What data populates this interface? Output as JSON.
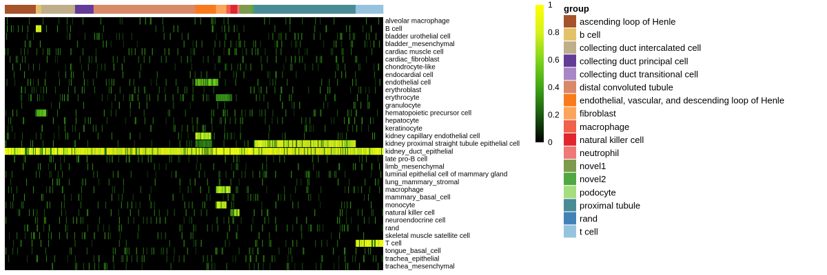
{
  "chart_data": {
    "type": "heatmap",
    "title": "",
    "n_columns": 550,
    "rows": [
      "alveolar macrophage",
      "B cell",
      "bladder urothelial cell",
      "bladder_mesenchymal",
      "cardiac muscle cell",
      "cardiac_fibroblast",
      "chondrocyte-like",
      "endocardial cell",
      "endothelial cell",
      "erythroblast",
      "erythrocyte",
      "granulocyte",
      "hematopoietic precursor cell",
      "hepatocyte",
      "keratinocyte",
      "kidney capillary endothelial cell",
      "kidney proximal straight tubule epithelial cell",
      "kidney_duct_epithelial",
      "late pro-B cell",
      "limb_mesenchymal",
      "luminal epithelial cell of mammary gland",
      "lung_mammary_stromal",
      "macrophage",
      "mammary_basal_cell",
      "monocyte",
      "natural killer cell",
      "neuroendocrine cell",
      "rand",
      "skeletal muscle satellite cell",
      "T cell",
      "tongue_basal_cell",
      "trachea_epithelial",
      "trachea_mesenchymal"
    ],
    "column_groups": [
      {
        "name": "ascending loop of Henle",
        "color": "#A6522A",
        "span": [
          0,
          45
        ]
      },
      {
        "name": "b cell",
        "color": "#E3C26A",
        "span": [
          45,
          53
        ]
      },
      {
        "name": "collecting duct intercalated cell",
        "color": "#BFAE8A",
        "span": [
          53,
          102
        ]
      },
      {
        "name": "collecting duct principal cell",
        "color": "#633C98",
        "span": [
          102,
          129
        ]
      },
      {
        "name": "distal convoluted tubule",
        "color": "#D9886A",
        "span": [
          129,
          277
        ]
      },
      {
        "name": "endothelial, vascular, and descending loop of Henle",
        "color": "#F97A1C",
        "span": [
          277,
          307
        ]
      },
      {
        "name": "fibroblast",
        "color": "#FCA55A",
        "span": [
          307,
          322
        ]
      },
      {
        "name": "macrophage",
        "color": "#F0604A",
        "span": [
          322,
          328
        ]
      },
      {
        "name": "natural killer cell",
        "color": "#E12630",
        "span": [
          328,
          338
        ]
      },
      {
        "name": "neutrophil",
        "color": "#F07878",
        "span": [
          338,
          341
        ]
      },
      {
        "name": "novel1",
        "color": "#7C9B4C",
        "span": [
          341,
          359
        ]
      },
      {
        "name": "novel2",
        "color": "#4FA842",
        "span": [
          359,
          362
        ]
      },
      {
        "name": "proximal tubule",
        "color": "#4A8C95",
        "span": [
          362,
          510
        ]
      },
      {
        "name": "t cell",
        "color": "#96C4DE",
        "span": [
          510,
          550
        ]
      }
    ],
    "high_value_blocks": [
      {
        "row": "kidney_duct_epithelial",
        "span": [
          0,
          550
        ],
        "value": 0.9
      },
      {
        "row": "kidney proximal straight tubule epithelial cell",
        "span": [
          362,
          510
        ],
        "value": 0.85
      },
      {
        "row": "kidney proximal straight tubule epithelial cell",
        "span": [
          277,
          300
        ],
        "value": 0.3
      },
      {
        "row": "kidney capillary endothelial cell",
        "span": [
          277,
          300
        ],
        "value": 0.75
      },
      {
        "row": "T cell",
        "span": [
          510,
          550
        ],
        "value": 0.9
      },
      {
        "row": "macrophage",
        "span": [
          307,
          328
        ],
        "value": 0.75
      },
      {
        "row": "monocyte",
        "span": [
          307,
          322
        ],
        "value": 0.85
      },
      {
        "row": "natural killer cell",
        "span": [
          328,
          341
        ],
        "value": 0.7
      },
      {
        "row": "B cell",
        "span": [
          45,
          53
        ],
        "value": 0.8
      },
      {
        "row": "endothelial cell",
        "span": [
          277,
          310
        ],
        "value": 0.55
      },
      {
        "row": "hematopoietic precursor cell",
        "span": [
          45,
          60
        ],
        "value": 0.5
      },
      {
        "row": "erythrocyte",
        "span": [
          307,
          330
        ],
        "value": 0.35
      }
    ],
    "colorbar": {
      "min": 0,
      "max": 1,
      "ticks": [
        "1",
        "0.8",
        "0.6",
        "0.4",
        "0.2",
        "0"
      ],
      "colors": [
        "#000000",
        "#1A5A10",
        "#3FA517",
        "#7FD41C",
        "#D7F21A",
        "#FFFF00"
      ]
    },
    "legend_title": "group",
    "legend": [
      {
        "label": "ascending loop of Henle",
        "color": "#A6522A"
      },
      {
        "label": "b cell",
        "color": "#E3C26A"
      },
      {
        "label": "collecting duct intercalated cell",
        "color": "#BFAE8A"
      },
      {
        "label": "collecting duct principal cell",
        "color": "#633C98"
      },
      {
        "label": "collecting duct transitional cell",
        "color": "#A986C6"
      },
      {
        "label": "distal convoluted tubule",
        "color": "#D9886A"
      },
      {
        "label": "endothelial, vascular, and descending loop of Henle",
        "color": "#F97A1C"
      },
      {
        "label": "fibroblast",
        "color": "#FCA55A"
      },
      {
        "label": "macrophage",
        "color": "#F0604A"
      },
      {
        "label": "natural killer cell",
        "color": "#E12630"
      },
      {
        "label": "neutrophil",
        "color": "#F07878"
      },
      {
        "label": "novel1",
        "color": "#7C9B4C"
      },
      {
        "label": "novel2",
        "color": "#4FA842"
      },
      {
        "label": "podocyte",
        "color": "#A6DD7E"
      },
      {
        "label": "proximal tubule",
        "color": "#4A8C95"
      },
      {
        "label": "rand",
        "color": "#4382B8"
      },
      {
        "label": "t cell",
        "color": "#96C4DE"
      }
    ]
  }
}
